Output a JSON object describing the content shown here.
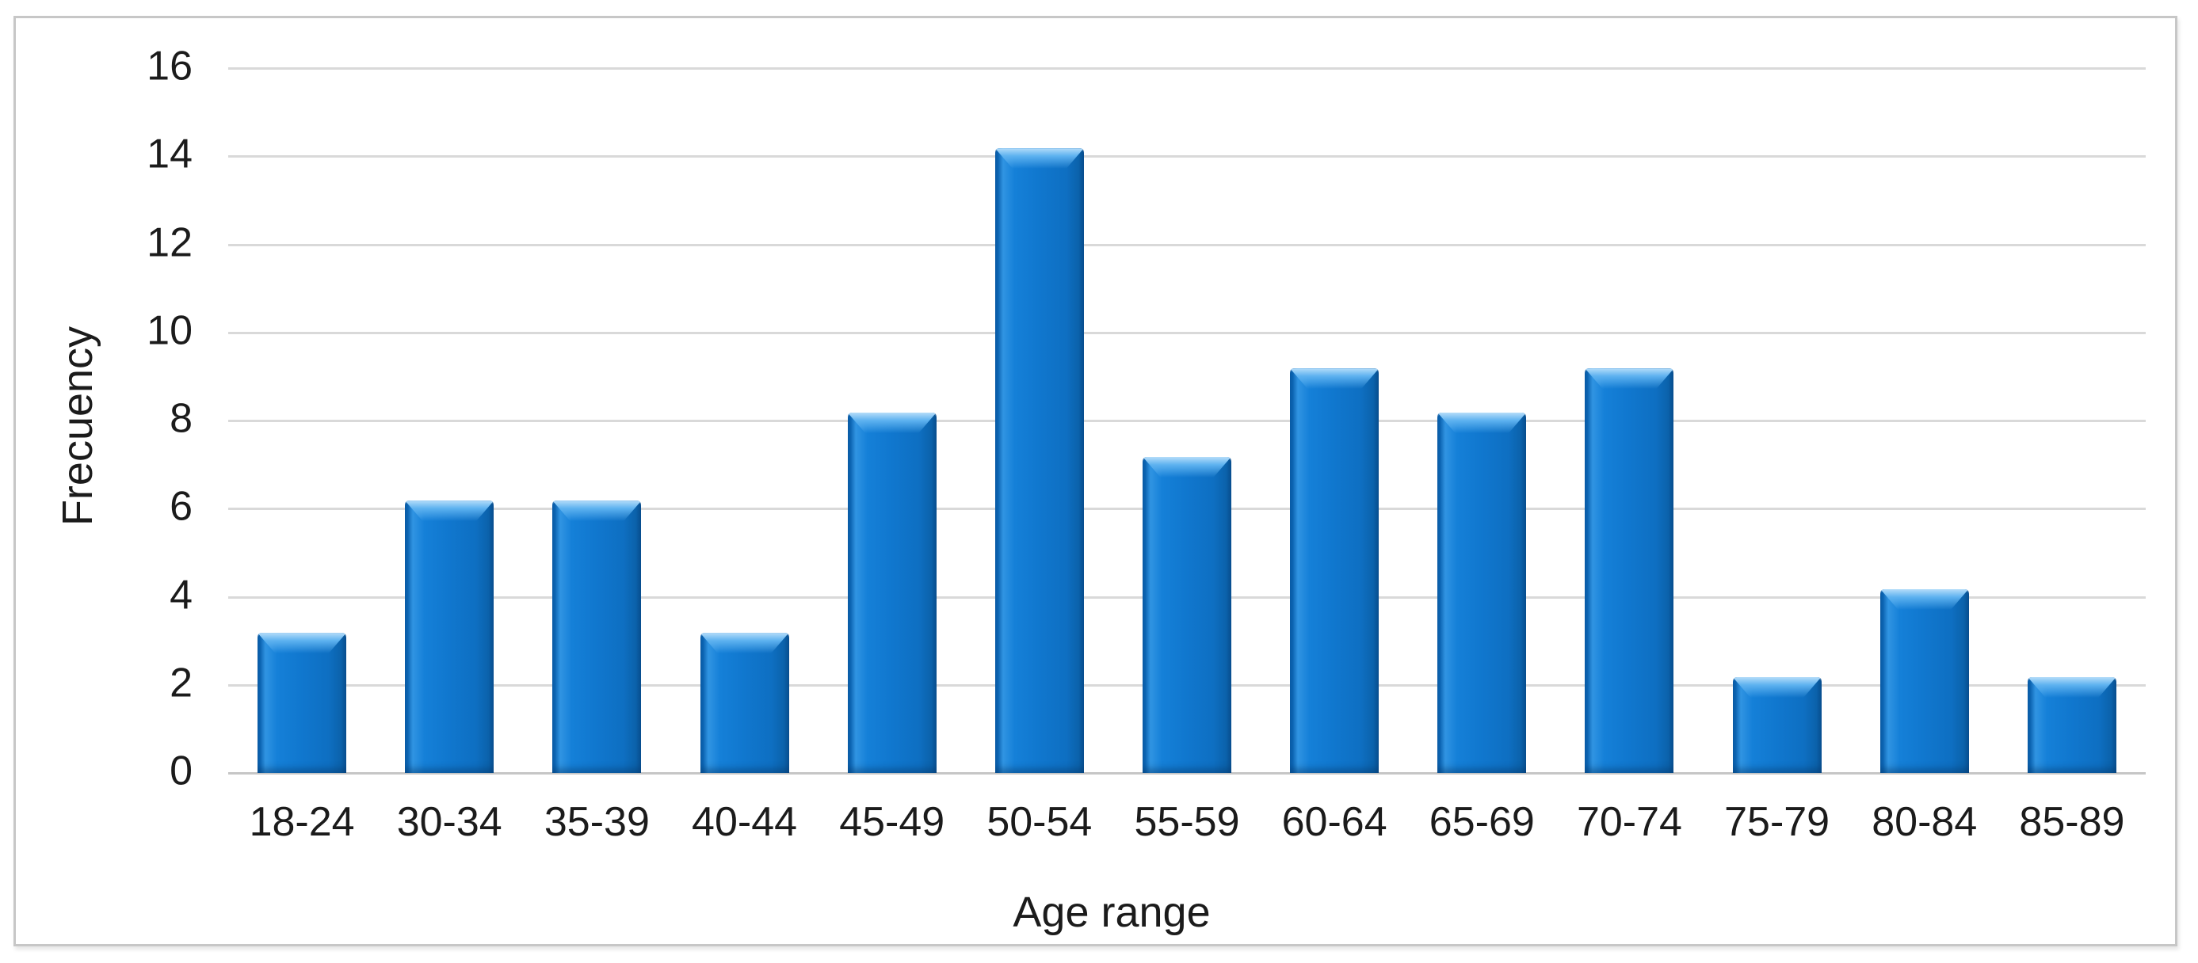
{
  "chart_data": {
    "type": "bar",
    "title": "",
    "categories": [
      "18-24",
      "30-34",
      "35-39",
      "40-44",
      "45-49",
      "50-54",
      "55-59",
      "60-64",
      "65-69",
      "70-74",
      "75-79",
      "80-84",
      "85-89"
    ],
    "values": [
      3,
      6,
      6,
      3,
      8,
      14,
      7,
      9,
      8,
      9,
      2,
      4,
      2
    ],
    "xlabel": "Age range",
    "ylabel": "Frecuency",
    "ylim": [
      0,
      16
    ],
    "yticks": [
      0,
      2,
      4,
      6,
      8,
      10,
      12,
      14,
      16
    ],
    "grid": true,
    "legend": false,
    "bar_color": "#1178cd",
    "bar_edge_color": "#0a5da8",
    "bar_highlight_color": "#5eb2f0",
    "gridline_color": "#d9d9d9",
    "text_color": "#1b1b1b",
    "figure_border_color": "#c7c7c7"
  }
}
